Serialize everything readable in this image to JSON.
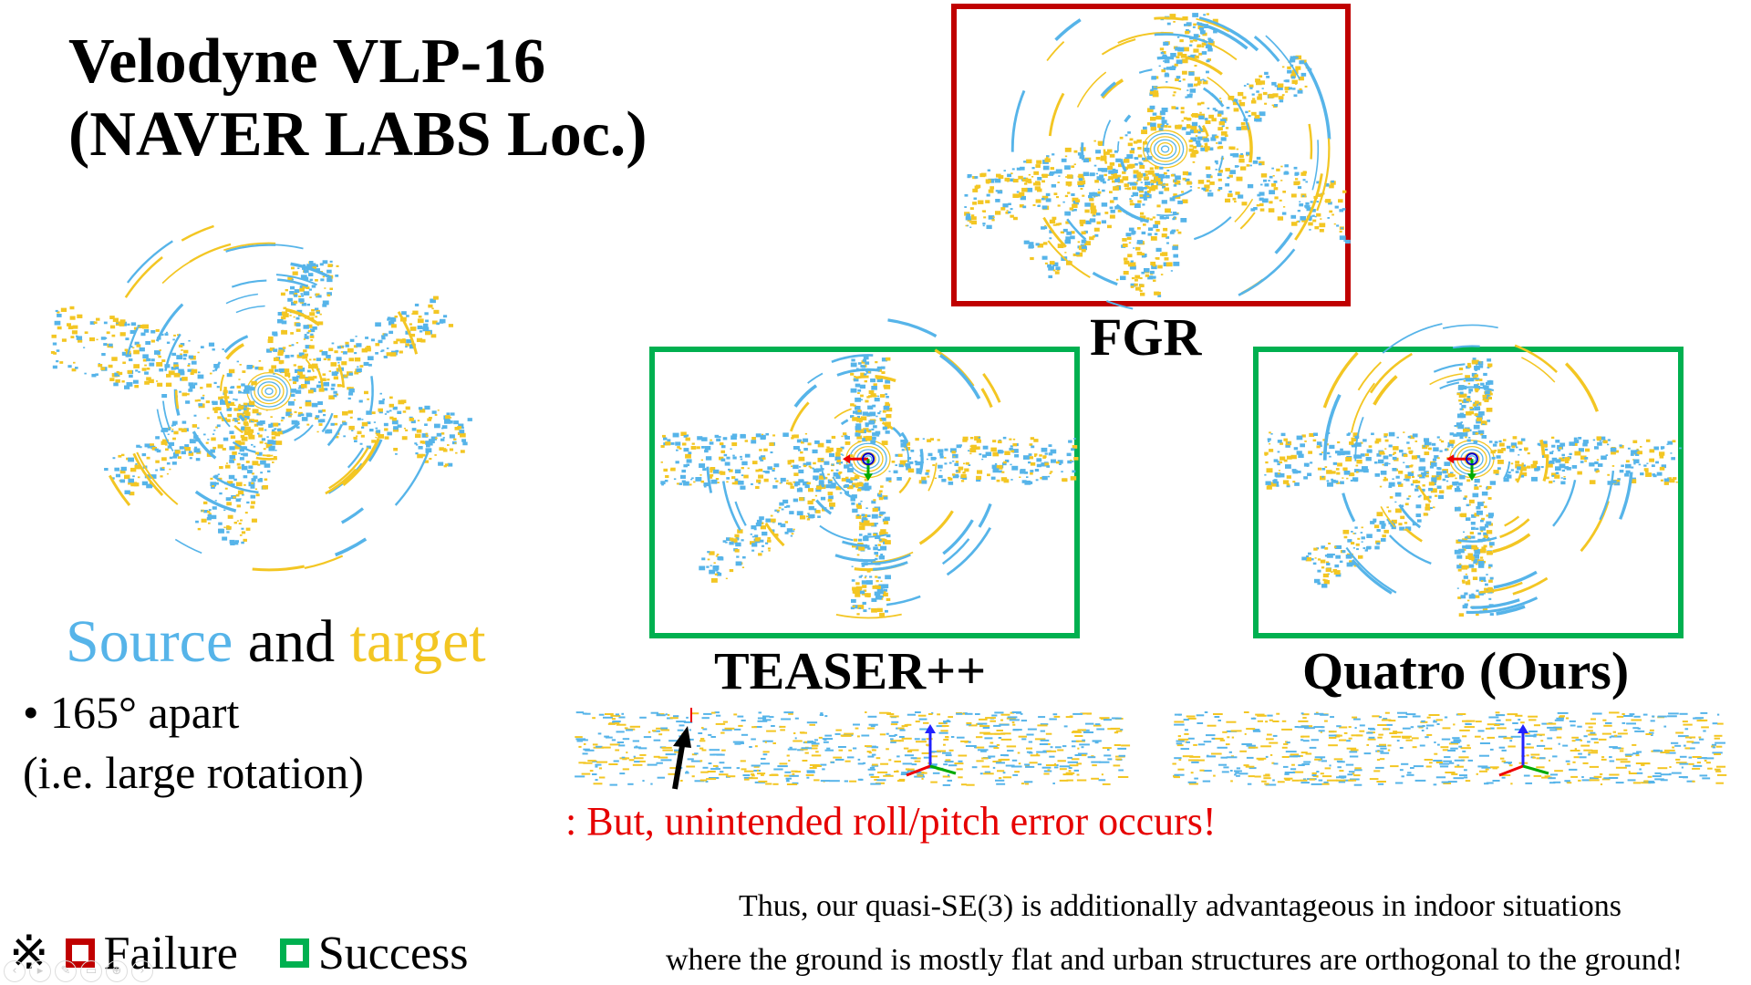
{
  "title": {
    "line1": "Velodyne VLP-16",
    "line2": "(NAVER LABS Loc.)"
  },
  "methods": {
    "fgr": {
      "label": "FGR",
      "status": "Failure"
    },
    "teaser": {
      "label": "TEASER++",
      "status": "Success"
    },
    "quatro": {
      "label": "Quatro (Ours)",
      "status": "Success"
    }
  },
  "legend_text": {
    "source": "Source",
    "and": "and",
    "target": "target",
    "bullet_marker": "•",
    "bullet": "165° apart",
    "bullet_detail": "(i.e. large rotation)"
  },
  "note": ": But, unintended roll/pitch error occurs!",
  "status_legend": {
    "marker": "※",
    "failure": "Failure",
    "success": "Success"
  },
  "caption": {
    "line1": "Thus, our quasi-SE(3) is additionally advantageous in indoor situations",
    "line2": "where the ground is mostly flat and urban structures are orthogonal to the ground!"
  },
  "colors": {
    "source": "#56b4e9",
    "target": "#f3c623",
    "failure": "#c00000",
    "success": "#00b050",
    "note": "#e60000"
  },
  "icons": [
    "lidar-point-cloud",
    "coordinate-axes-icon",
    "arrow-icon"
  ],
  "toolbar_icons": [
    "prev-icon",
    "play-icon",
    "pen-icon",
    "copy-icon",
    "zoom-icon",
    "next-icon"
  ]
}
